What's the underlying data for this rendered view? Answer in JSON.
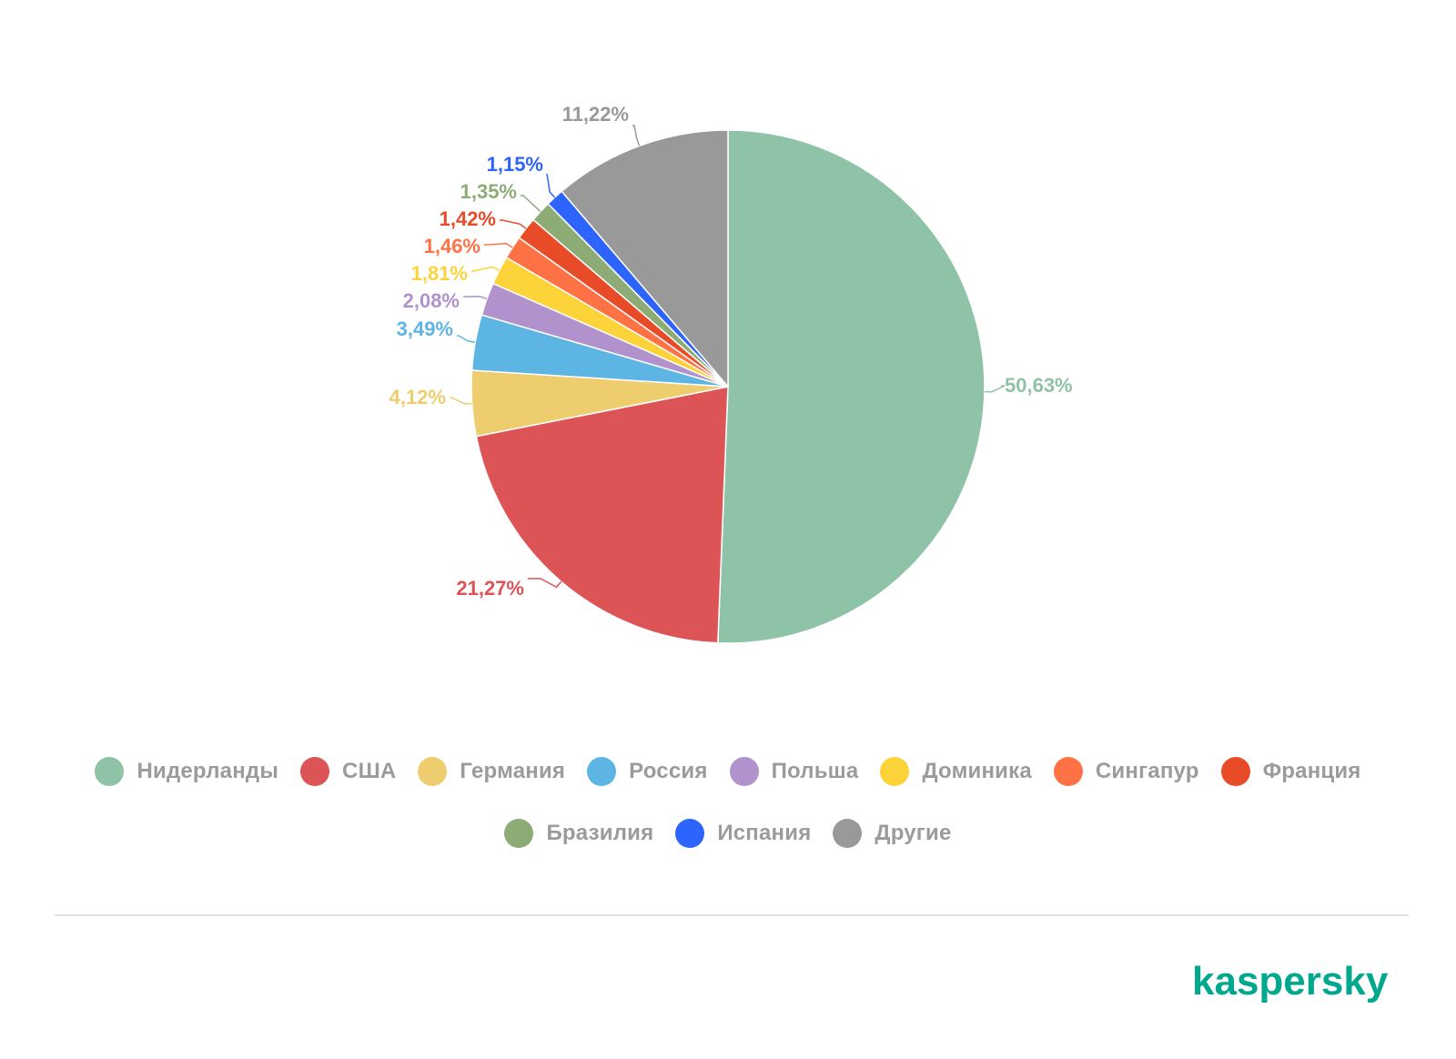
{
  "chart_data": {
    "type": "pie",
    "slices": [
      {
        "name": "Нидерланды",
        "value": 50.63,
        "label": "50,63%",
        "color": "#8fc3a7"
      },
      {
        "name": "США",
        "value": 21.27,
        "label": "21,27%",
        "color": "#dd5457"
      },
      {
        "name": "Германия",
        "value": 4.12,
        "label": "4,12%",
        "color": "#eecd6e"
      },
      {
        "name": "Россия",
        "value": 3.49,
        "label": "3,49%",
        "color": "#5db5e3"
      },
      {
        "name": "Польша",
        "value": 2.08,
        "label": "2,08%",
        "color": "#b192cc"
      },
      {
        "name": "Доминика",
        "value": 1.81,
        "label": "1,81%",
        "color": "#fdd33a"
      },
      {
        "name": "Сингапур",
        "value": 1.46,
        "label": "1,46%",
        "color": "#ff7245"
      },
      {
        "name": "Франция",
        "value": 1.42,
        "label": "1,42%",
        "color": "#e84b27"
      },
      {
        "name": "Бразилия",
        "value": 1.35,
        "label": "1,35%",
        "color": "#8dab75"
      },
      {
        "name": "Испания",
        "value": 1.15,
        "label": "1,15%",
        "color": "#2e64fe"
      },
      {
        "name": "Другие",
        "value": 11.22,
        "label": "11,22%",
        "color": "#999999"
      }
    ],
    "legend_position": "bottom"
  },
  "brand": {
    "name": "kaspersky",
    "color": "#00a88e"
  }
}
